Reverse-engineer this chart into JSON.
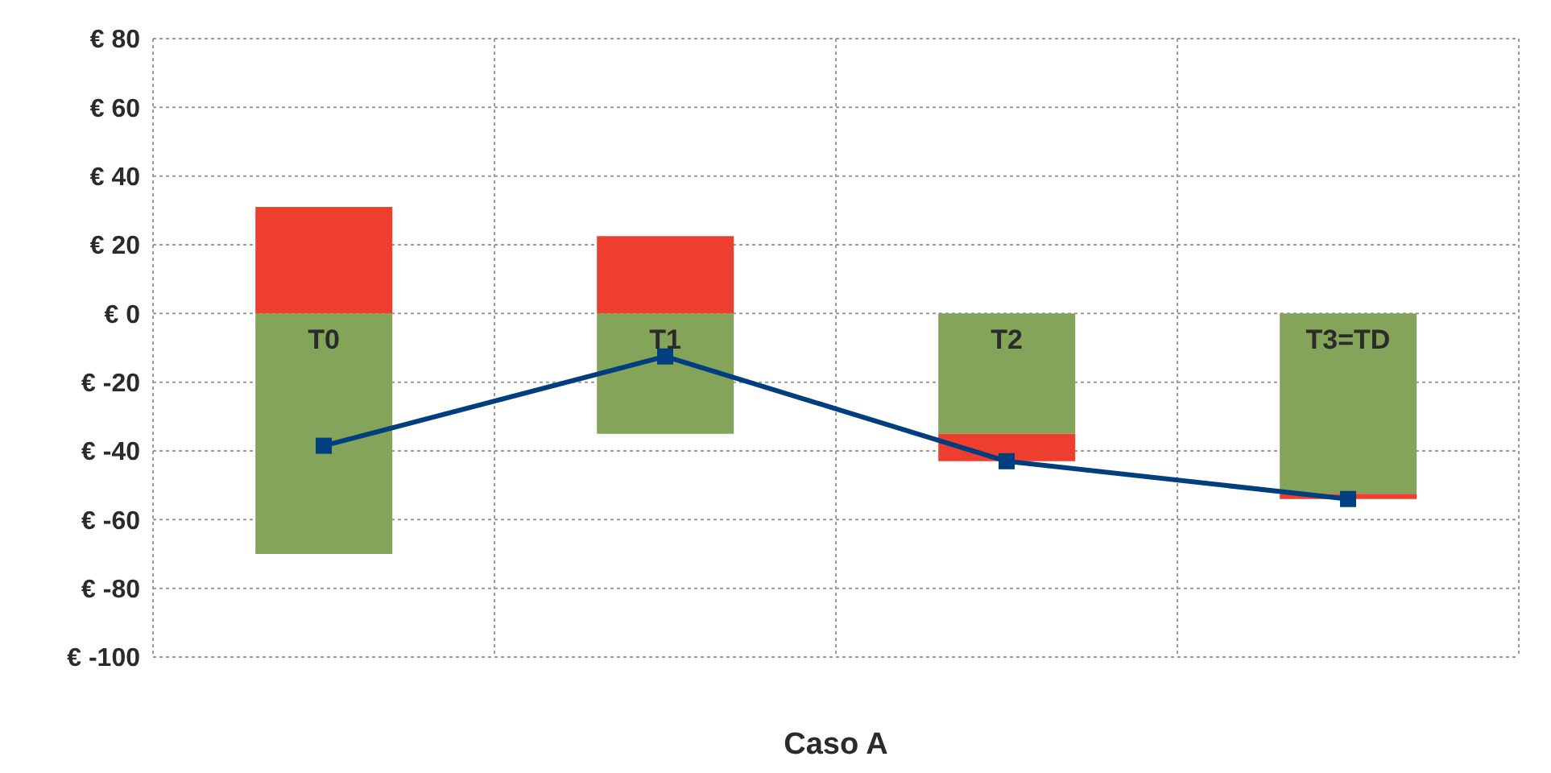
{
  "chart_data": {
    "type": "bar",
    "stacked": true,
    "xlabel": "Caso A",
    "categories": [
      "T0",
      "T1",
      "T2",
      "T3=TD"
    ],
    "series": [
      {
        "color": "#84a45a",
        "values": [
          -70,
          -35,
          -35,
          -52.5
        ]
      },
      {
        "color": "#ee3f2e",
        "values": [
          31,
          22.5,
          -8,
          -1.5
        ]
      },
      {
        "type": "line",
        "color": "#003f7f",
        "values": [
          -38.5,
          -12.5,
          -43,
          -54
        ],
        "marker": "square",
        "line_style": "solid"
      }
    ],
    "ylim": [
      -100,
      80
    ],
    "yticks": [
      {
        "value": -100,
        "label": "€ -100"
      },
      {
        "value": -80,
        "label": "€ -80"
      },
      {
        "value": -60,
        "label": "€ -60"
      },
      {
        "value": -40,
        "label": "€ -40"
      },
      {
        "value": -20,
        "label": "€ -20"
      },
      {
        "value": 0,
        "label": "€ 0"
      },
      {
        "value": 20,
        "label": "€ 20"
      },
      {
        "value": 40,
        "label": "€ 40"
      },
      {
        "value": 60,
        "label": "€ 60"
      },
      {
        "value": 80,
        "label": "€ 80"
      }
    ],
    "grid": true
  }
}
